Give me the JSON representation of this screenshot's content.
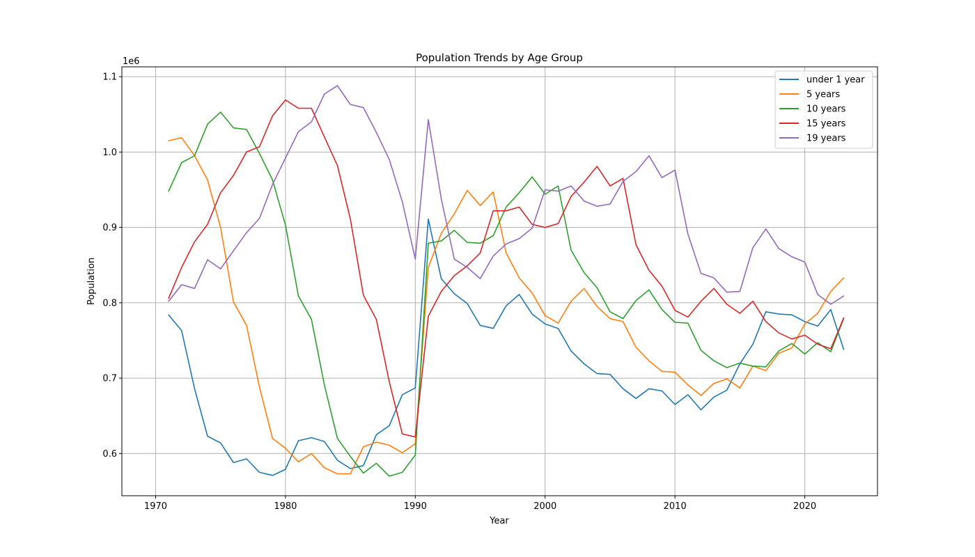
{
  "chart_data": {
    "type": "line",
    "title": "Population Trends by Age Group",
    "xlabel": "Year",
    "ylabel": "Population",
    "y_scale_label": "1e6",
    "xlim": [
      1967.4,
      2025.6
    ],
    "ylim": [
      544000,
      1113000
    ],
    "xticks": [
      1970,
      1980,
      1990,
      2000,
      2010,
      2020
    ],
    "yticks": [
      600000,
      700000,
      800000,
      900000,
      1000000,
      1100000
    ],
    "ytick_labels": [
      "0.6",
      "0.7",
      "0.8",
      "0.9",
      "1.0",
      "1.1"
    ],
    "grid": true,
    "legend_position": "top-right",
    "x": [
      1971,
      1972,
      1973,
      1974,
      1975,
      1976,
      1977,
      1978,
      1979,
      1980,
      1981,
      1982,
      1983,
      1984,
      1985,
      1986,
      1987,
      1988,
      1989,
      1990,
      1991,
      1992,
      1993,
      1994,
      1995,
      1996,
      1997,
      1998,
      1999,
      2000,
      2001,
      2002,
      2003,
      2004,
      2005,
      2006,
      2007,
      2008,
      2009,
      2010,
      2011,
      2012,
      2013,
      2014,
      2015,
      2016,
      2017,
      2018,
      2019,
      2020,
      2021,
      2022,
      2023
    ],
    "series": [
      {
        "name": "under 1 year",
        "color": "#1f77b4",
        "values": [
          784000,
          763000,
          686000,
          623000,
          614000,
          588000,
          593000,
          575000,
          571000,
          579000,
          617000,
          621000,
          616000,
          591000,
          580000,
          584000,
          625000,
          637000,
          678000,
          687000,
          911000,
          832000,
          812000,
          799000,
          770000,
          766000,
          796000,
          811000,
          785000,
          772000,
          766000,
          736000,
          719000,
          706000,
          705000,
          686000,
          673000,
          686000,
          683000,
          665000,
          678000,
          658000,
          675000,
          684000,
          719000,
          745000,
          788000,
          785000,
          784000,
          775000,
          769000,
          791000,
          738000
        ]
      },
      {
        "name": "5 years",
        "color": "#ff7f0e",
        "values": [
          1015000,
          1019000,
          995000,
          963000,
          900000,
          801000,
          770000,
          688000,
          620000,
          607000,
          589000,
          600000,
          581000,
          573000,
          573000,
          609000,
          615000,
          611000,
          601000,
          613000,
          847000,
          892000,
          918000,
          949000,
          929000,
          947000,
          866000,
          833000,
          813000,
          783000,
          773000,
          802000,
          819000,
          795000,
          779000,
          775000,
          741000,
          723000,
          709000,
          708000,
          691000,
          677000,
          693000,
          699000,
          687000,
          716000,
          710000,
          733000,
          740000,
          772000,
          786000,
          815000,
          833000
        ]
      },
      {
        "name": "10 years",
        "color": "#2ca02c",
        "values": [
          948000,
          986000,
          995000,
          1037000,
          1053000,
          1032000,
          1030000,
          998000,
          963000,
          903000,
          809000,
          778000,
          691000,
          620000,
          596000,
          574000,
          587000,
          570000,
          575000,
          598000,
          879000,
          882000,
          896000,
          880000,
          879000,
          889000,
          927000,
          946000,
          967000,
          944000,
          955000,
          870000,
          840000,
          820000,
          788000,
          779000,
          803000,
          817000,
          791000,
          774000,
          773000,
          737000,
          723000,
          714000,
          720000,
          716000,
          715000,
          736000,
          746000,
          732000,
          747000,
          735000,
          779000
        ]
      },
      {
        "name": "15 years",
        "color": "#d62728",
        "values": [
          806000,
          847000,
          881000,
          904000,
          946000,
          969000,
          1000000,
          1007000,
          1048000,
          1069000,
          1058000,
          1058000,
          1020000,
          982000,
          911000,
          810000,
          778000,
          695000,
          626000,
          622000,
          782000,
          815000,
          836000,
          849000,
          866000,
          922000,
          922000,
          927000,
          904000,
          900000,
          905000,
          941000,
          960000,
          981000,
          955000,
          965000,
          877000,
          843000,
          822000,
          790000,
          781000,
          802000,
          819000,
          798000,
          786000,
          802000,
          775000,
          760000,
          752000,
          757000,
          745000,
          739000,
          780000
        ]
      },
      {
        "name": "19 years",
        "color": "#9467bd",
        "values": [
          802000,
          824000,
          819000,
          857000,
          845000,
          869000,
          893000,
          912000,
          957000,
          992000,
          1027000,
          1040000,
          1077000,
          1088000,
          1063000,
          1059000,
          1026000,
          990000,
          934000,
          858000,
          1043000,
          938000,
          858000,
          847000,
          832000,
          862000,
          878000,
          885000,
          899000,
          950000,
          948000,
          955000,
          935000,
          928000,
          931000,
          961000,
          974000,
          995000,
          966000,
          976000,
          891000,
          839000,
          833000,
          814000,
          815000,
          873000,
          898000,
          872000,
          861000,
          854000,
          811000,
          798000,
          809000
        ]
      }
    ]
  }
}
